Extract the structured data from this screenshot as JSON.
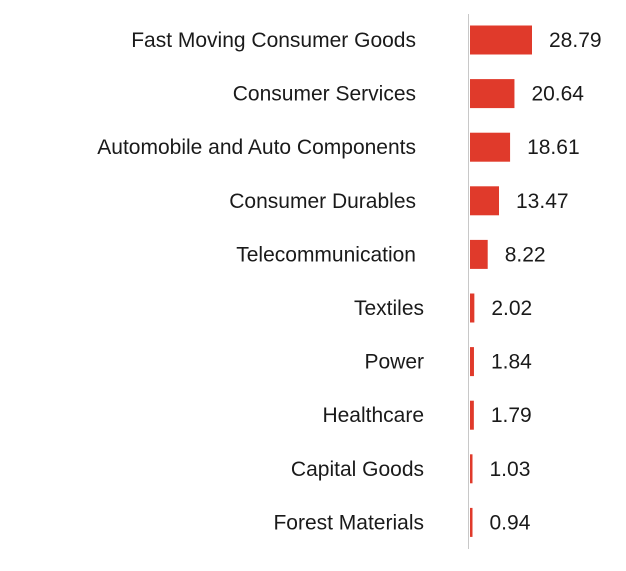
{
  "chart_data": {
    "type": "bar",
    "orientation": "horizontal",
    "title": "",
    "xlabel": "",
    "ylabel": "",
    "categories": [
      "Fast Moving Consumer Goods",
      "Consumer Services",
      "Automobile and Auto Components",
      "Consumer Durables",
      "Telecommunication",
      "Textiles",
      "Power",
      "Healthcare",
      "Capital Goods",
      "Forest Materials"
    ],
    "values": [
      28.79,
      20.64,
      18.61,
      13.47,
      8.22,
      2.02,
      1.84,
      1.79,
      1.03,
      0.94
    ],
    "value_labels": [
      "28.79",
      "20.64",
      "18.61",
      "13.47",
      "8.22",
      "2.02",
      "1.84",
      "1.79",
      "1.03",
      "0.94"
    ],
    "xlim": [
      0,
      28.79
    ],
    "grid": false,
    "legend": "none",
    "bar_color": "#e03a2b"
  }
}
